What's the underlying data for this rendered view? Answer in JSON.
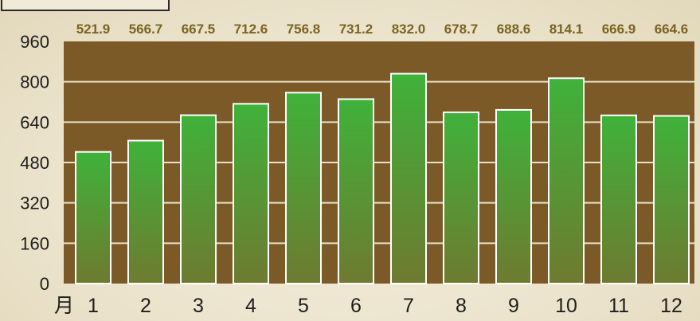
{
  "chart_data": {
    "type": "bar",
    "x_unit_label": "月",
    "categories": [
      "1",
      "2",
      "3",
      "4",
      "5",
      "6",
      "7",
      "8",
      "9",
      "10",
      "11",
      "12"
    ],
    "values": [
      521.9,
      566.7,
      667.5,
      712.6,
      756.8,
      731.2,
      832.0,
      678.7,
      688.6,
      814.1,
      666.9,
      664.6
    ],
    "value_labels": [
      "521.9",
      "566.7",
      "667.5",
      "712.6",
      "756.8",
      "731.2",
      "832.0",
      "678.7",
      "688.6",
      "814.1",
      "666.9",
      "664.6"
    ],
    "yticks": [
      "0",
      "160",
      "320",
      "480",
      "640",
      "800",
      "960"
    ],
    "ylim": [
      0,
      960
    ],
    "grid": true,
    "colors": {
      "plot_bg": "#7b5a28",
      "bar_top": "#3fb23a",
      "bar_bottom": "#6e7a30",
      "bar_stroke": "#ffffff",
      "grid": "#e8e1c8",
      "value_label": "#7a6420"
    }
  }
}
